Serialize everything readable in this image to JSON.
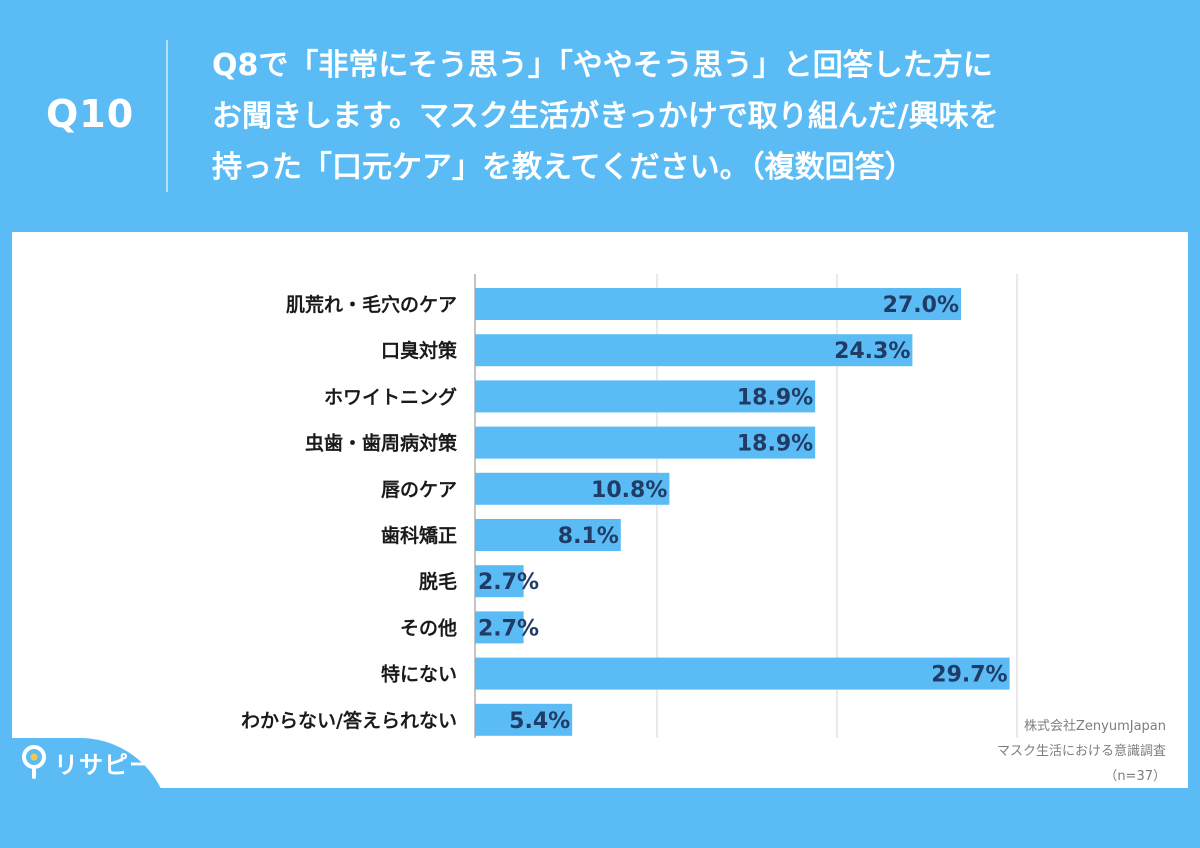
{
  "header": {
    "question_number": "Q10",
    "question_lines": [
      "Q8で「非常にそう思う」「ややそう思う」と回答した方に",
      "お聞きします。マスク生活がきっかけで取り組んだ/興味を",
      "持った「口元ケア」を教えてください。（複数回答）"
    ]
  },
  "chart_data": {
    "type": "bar",
    "orientation": "horizontal",
    "categories": [
      "肌荒れ・毛穴のケア",
      "口臭対策",
      "ホワイトニング",
      "虫歯・歯周病対策",
      "唇のケア",
      "歯科矯正",
      "脱毛",
      "その他",
      "特にない",
      "わからない/答えられない"
    ],
    "values": [
      27.0,
      24.3,
      18.9,
      18.9,
      10.8,
      8.1,
      2.7,
      2.7,
      29.7,
      5.4
    ],
    "value_labels": [
      "27.0%",
      "24.3%",
      "18.9%",
      "18.9%",
      "10.8%",
      "8.1%",
      "2.7%",
      "2.7%",
      "29.7%",
      "5.4%"
    ],
    "xlim": [
      0,
      30
    ],
    "grid": true,
    "bar_color": "#5bbcf5"
  },
  "footer": {
    "credit_lines": [
      "株式会社ZenyumJapan",
      "マスク生活における意識調査",
      "（n=37）"
    ],
    "logo_text": "リサピー"
  },
  "colors": {
    "accent": "#5bbcf5",
    "panel": "#ffffff",
    "value_text": "#1f3b66"
  }
}
